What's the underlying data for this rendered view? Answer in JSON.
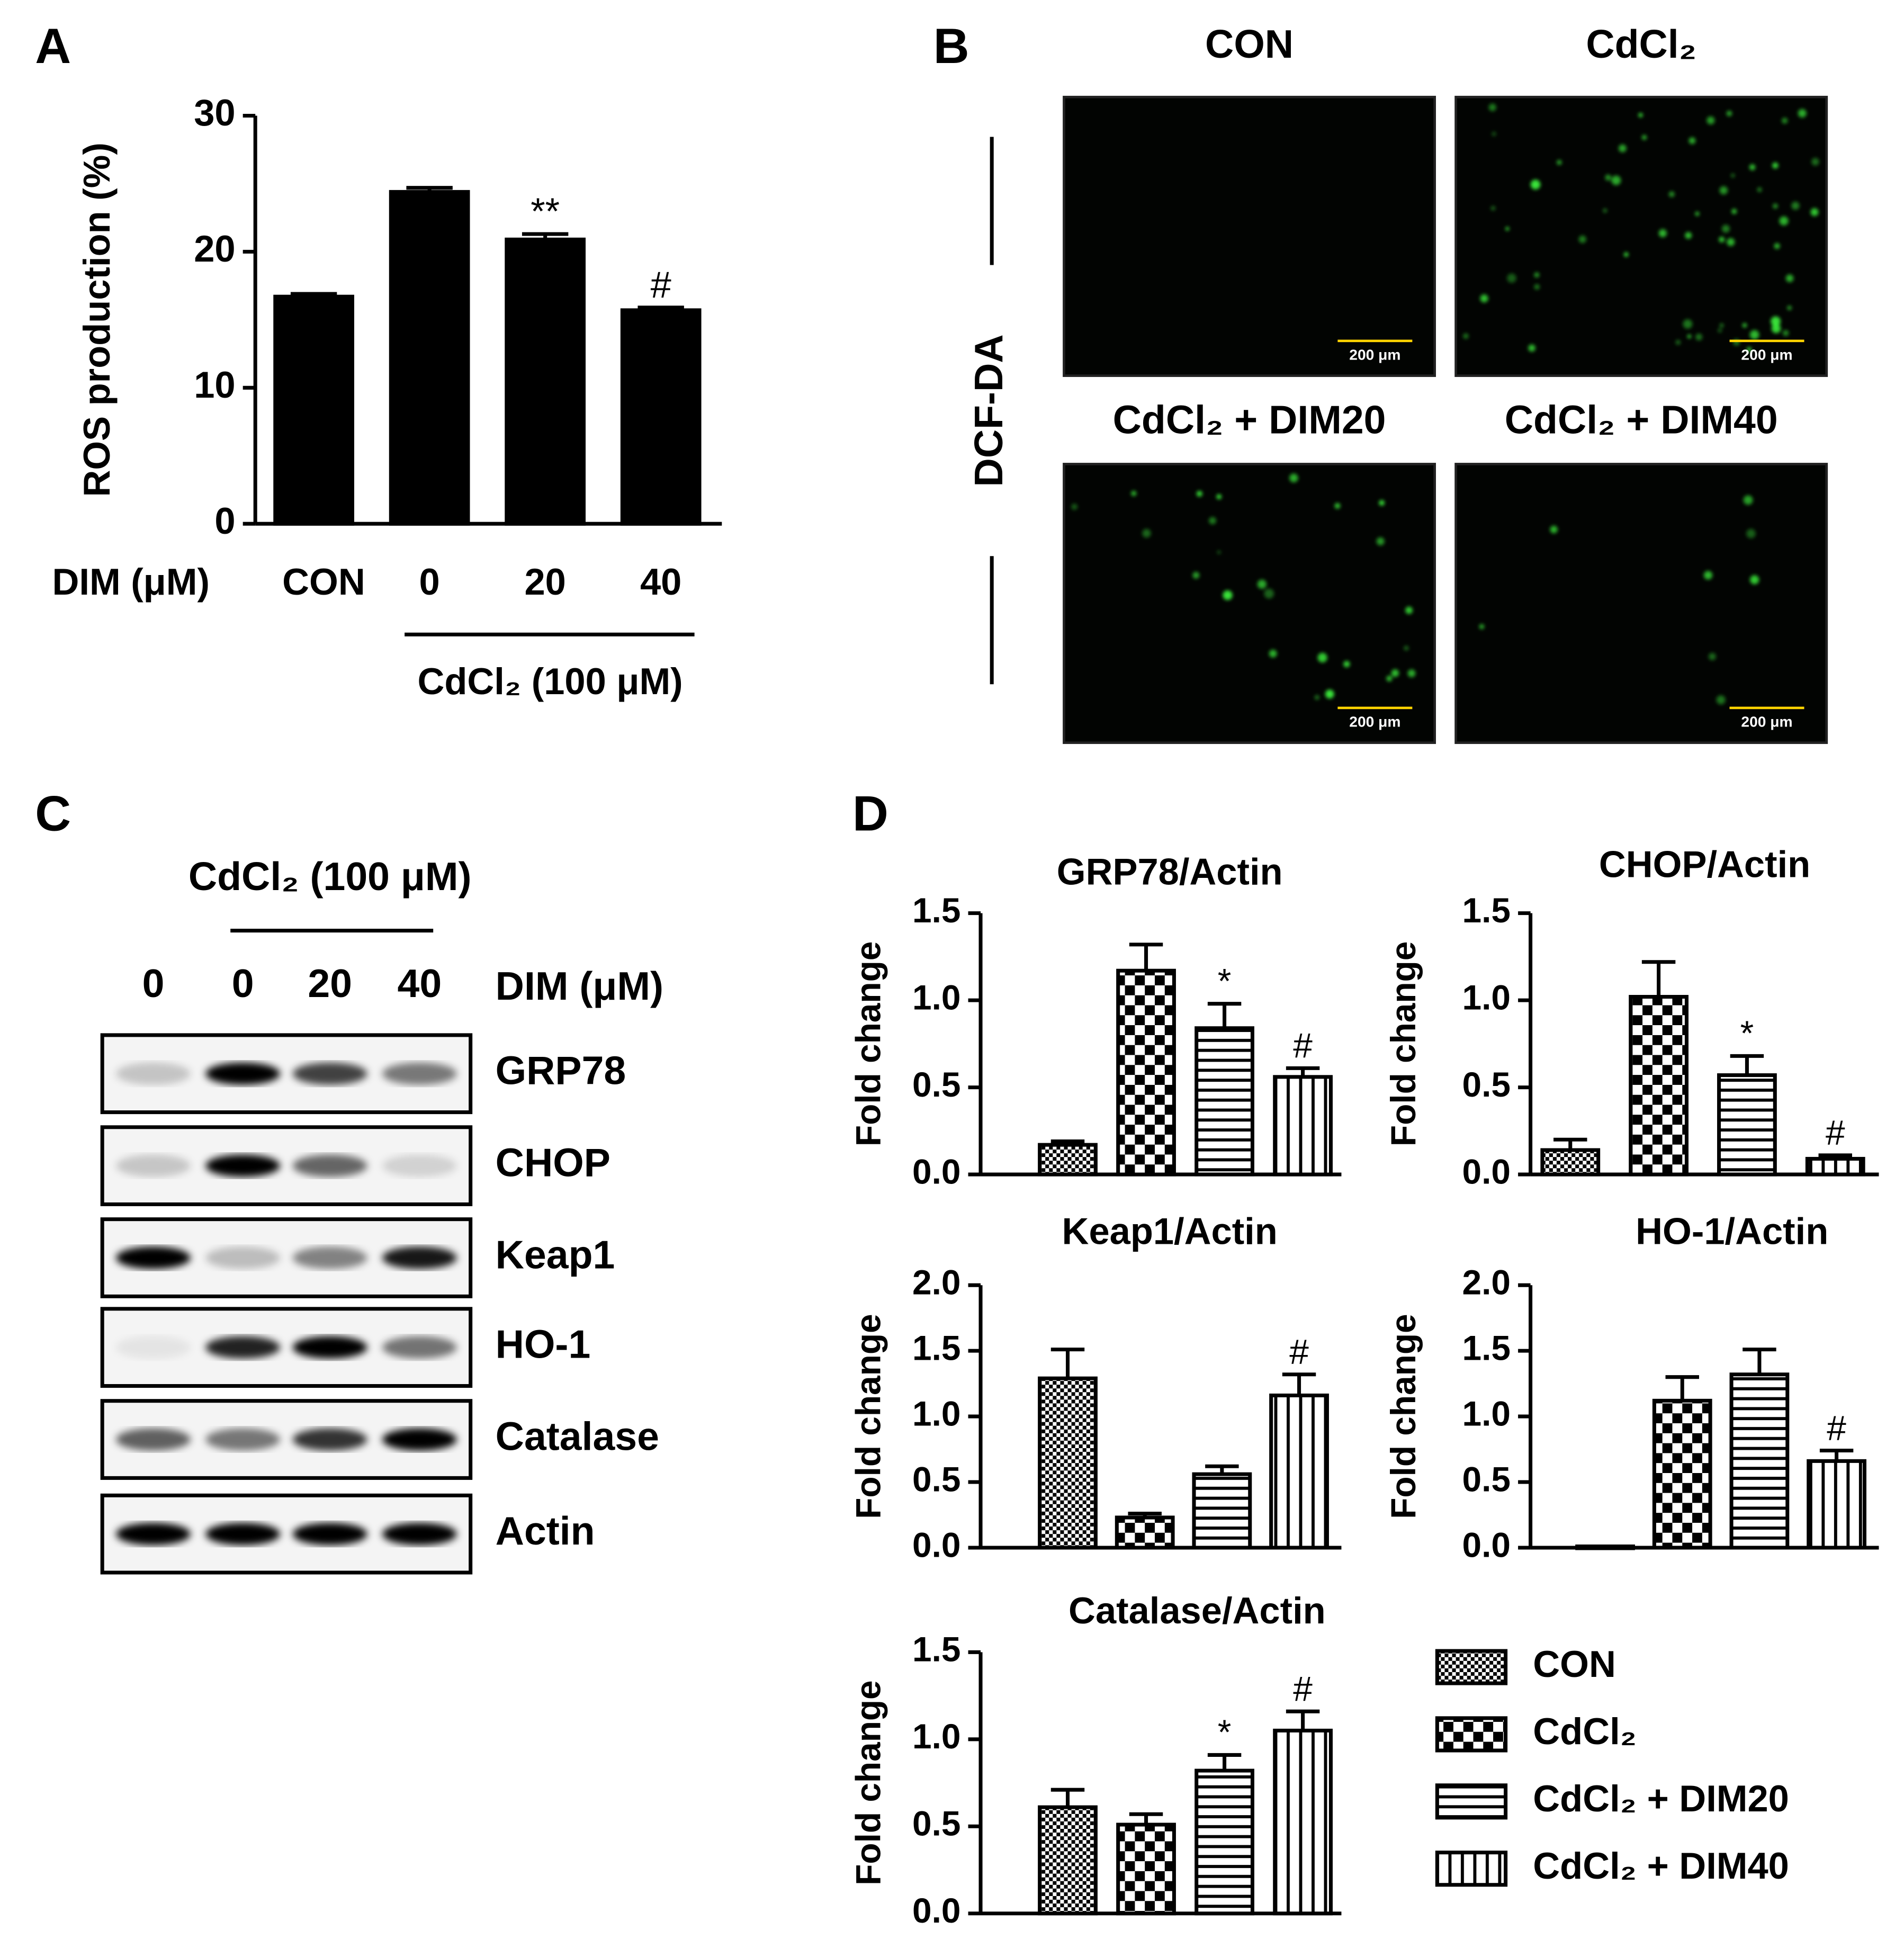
{
  "panel_labels": [
    "A",
    "B",
    "C",
    "D"
  ],
  "chart_data": [
    {
      "type": "bar",
      "ylabel": "ROS production (%)",
      "xlabel": "DIM (μM)",
      "group_label": "CdCl₂ (100 μM)",
      "categories": [
        "CON",
        "0",
        "20",
        "40"
      ],
      "values": [
        16.7,
        24.4,
        20.9,
        15.7
      ],
      "errors": [
        0.2,
        0.3,
        0.4,
        0.2
      ],
      "significance": [
        null,
        null,
        "**",
        "#"
      ],
      "color": "#000000",
      "ylim": [
        0,
        30
      ],
      "yticks": [
        0,
        10,
        20,
        30
      ]
    },
    {
      "type": "bar",
      "title": "GRP78/Actin",
      "ylabel": "Fold change",
      "values": [
        0.17,
        1.17,
        0.84,
        0.56
      ],
      "errors": [
        0.02,
        0.15,
        0.14,
        0.05
      ],
      "significance": [
        null,
        null,
        "*",
        "#"
      ],
      "ylim": [
        0,
        1.5
      ],
      "yticks": [
        {
          "value": 0,
          "label": "0.0"
        },
        0.5,
        {
          "value": 1,
          "label": "1.0"
        },
        1.5
      ]
    },
    {
      "type": "bar",
      "title": "CHOP/Actin",
      "ylabel": "Fold change",
      "values": [
        0.14,
        1.02,
        0.57,
        0.09
      ],
      "errors": [
        0.06,
        0.2,
        0.11,
        0.02
      ],
      "significance": [
        null,
        null,
        "*",
        "#"
      ],
      "ylim": [
        0,
        1.5
      ],
      "yticks": [
        {
          "value": 0,
          "label": "0.0"
        },
        0.5,
        {
          "value": 1,
          "label": "1.0"
        },
        1.5
      ]
    },
    {
      "type": "bar",
      "title": "Keap1/Actin",
      "ylabel": "Fold change",
      "values": [
        1.29,
        0.23,
        0.56,
        1.16
      ],
      "errors": [
        0.22,
        0.03,
        0.06,
        0.16
      ],
      "significance": [
        null,
        null,
        null,
        "#"
      ],
      "ylim": [
        0,
        2
      ],
      "yticks": [
        {
          "value": 0,
          "label": "0.0"
        },
        0.5,
        {
          "value": 1,
          "label": "1.0"
        },
        1.5,
        {
          "value": 2,
          "label": "2.0"
        }
      ]
    },
    {
      "type": "bar",
      "title": "HO-1/Actin",
      "ylabel": "Fold change",
      "values": [
        0.01,
        1.12,
        1.32,
        0.66
      ],
      "errors": [
        0,
        0.18,
        0.19,
        0.08
      ],
      "significance": [
        null,
        null,
        null,
        "#"
      ],
      "ylim": [
        0,
        2
      ],
      "yticks": [
        {
          "value": 0,
          "label": "0.0"
        },
        0.5,
        {
          "value": 1,
          "label": "1.0"
        },
        1.5,
        {
          "value": 2,
          "label": "2.0"
        }
      ]
    },
    {
      "type": "bar",
      "title": "Catalase/Actin",
      "ylabel": "Fold change",
      "values": [
        0.61,
        0.51,
        0.82,
        1.05
      ],
      "errors": [
        0.1,
        0.06,
        0.09,
        0.11
      ],
      "significance": [
        null,
        null,
        "*",
        "#"
      ],
      "ylim": [
        0,
        1.5
      ],
      "yticks": [
        {
          "value": 0,
          "label": "0.0"
        },
        0.5,
        {
          "value": 1,
          "label": "1.0"
        },
        1.5
      ]
    }
  ],
  "legend": {
    "entries": [
      "CON",
      "CdCl₂",
      "CdCl₂ + DIM20",
      "CdCl₂ + DIM40"
    ],
    "patterns": [
      "dots",
      "checker",
      "horizontal",
      "vertical"
    ]
  },
  "images": {
    "titles": [
      "CON",
      "CdCl₂",
      "CdCl₂ + DIM20",
      "CdCl₂ + DIM40"
    ],
    "stain": "DCF-DA",
    "scale_bars": [
      "200 μm",
      "200 μm",
      "200 μm",
      "200 μm"
    ]
  },
  "blot": {
    "header": "CdCl₂ (100 μM)",
    "lanes": [
      "0",
      "0",
      "20",
      "40"
    ],
    "lane_label": "DIM (μM)",
    "rows": [
      "GRP78",
      "CHOP",
      "Keap1",
      "HO-1",
      "Catalase",
      "Actin"
    ]
  }
}
